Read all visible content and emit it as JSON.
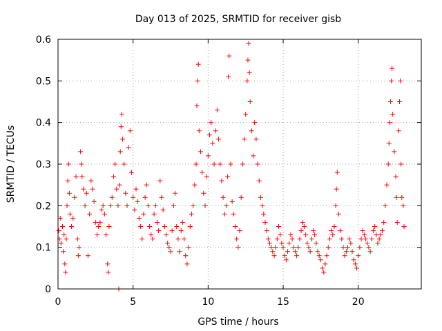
{
  "chart_data": {
    "type": "scatter",
    "title": "Day 013 of 2025, SRMTID for receiver gisb",
    "xlabel": "GPS time / hours",
    "ylabel": "SRMTID / TECUs",
    "xlim": [
      0,
      24.2
    ],
    "ylim": [
      0,
      0.6
    ],
    "x_ticks": [
      0,
      5,
      10,
      15,
      20
    ],
    "y_ticks": [
      0,
      0.1,
      0.2,
      0.3,
      0.4,
      0.5,
      0.6
    ],
    "grid": true,
    "marker": "+",
    "marker_color": "#ff0000",
    "series": [
      {
        "name": "SRMTID",
        "points": [
          [
            0.05,
            0.14
          ],
          [
            0.1,
            0.12
          ],
          [
            0.15,
            0.17
          ],
          [
            0.2,
            0.11
          ],
          [
            0.3,
            0.15
          ],
          [
            0.35,
            0.09
          ],
          [
            0.4,
            0.13
          ],
          [
            0.45,
            0.06
          ],
          [
            0.5,
            0.04
          ],
          [
            0.55,
            0.12
          ],
          [
            0.6,
            0.2
          ],
          [
            0.65,
            0.26
          ],
          [
            0.7,
            0.3
          ],
          [
            0.75,
            0.23
          ],
          [
            0.8,
            0.18
          ],
          [
            0.9,
            0.15
          ],
          [
            1.0,
            0.17
          ],
          [
            1.1,
            0.22
          ],
          [
            1.2,
            0.27
          ],
          [
            1.3,
            0.12
          ],
          [
            1.35,
            0.08
          ],
          [
            1.4,
            0.1
          ],
          [
            1.5,
            0.33
          ],
          [
            1.55,
            0.3
          ],
          [
            1.6,
            0.27
          ],
          [
            1.7,
            0.24
          ],
          [
            1.8,
            0.2
          ],
          [
            1.9,
            0.23
          ],
          [
            2.0,
            0.08
          ],
          [
            2.1,
            0.18
          ],
          [
            2.2,
            0.26
          ],
          [
            2.3,
            0.24
          ],
          [
            2.4,
            0.21
          ],
          [
            2.5,
            0.16
          ],
          [
            2.6,
            0.13
          ],
          [
            2.7,
            0.15
          ],
          [
            2.8,
            0.16
          ],
          [
            2.9,
            0.19
          ],
          [
            3.0,
            0.2
          ],
          [
            3.1,
            0.18
          ],
          [
            3.2,
            0.13
          ],
          [
            3.3,
            0.06
          ],
          [
            3.35,
            0.04
          ],
          [
            3.4,
            0.15
          ],
          [
            3.5,
            0.2
          ],
          [
            3.6,
            0.22
          ],
          [
            3.7,
            0.27
          ],
          [
            3.8,
            0.3
          ],
          [
            3.9,
            0.24
          ],
          [
            4.0,
            0.2
          ],
          [
            4.05,
            0.0
          ],
          [
            4.1,
            0.25
          ],
          [
            4.15,
            0.33
          ],
          [
            4.2,
            0.39
          ],
          [
            4.25,
            0.42
          ],
          [
            4.3,
            0.36
          ],
          [
            4.4,
            0.3
          ],
          [
            4.5,
            0.23
          ],
          [
            4.6,
            0.2
          ],
          [
            4.7,
            0.34
          ],
          [
            4.8,
            0.38
          ],
          [
            4.9,
            0.28
          ],
          [
            5.0,
            0.22
          ],
          [
            5.1,
            0.19
          ],
          [
            5.2,
            0.24
          ],
          [
            5.3,
            0.21
          ],
          [
            5.4,
            0.17
          ],
          [
            5.5,
            0.15
          ],
          [
            5.6,
            0.12
          ],
          [
            5.7,
            0.18
          ],
          [
            5.8,
            0.22
          ],
          [
            5.9,
            0.25
          ],
          [
            6.0,
            0.2
          ],
          [
            6.1,
            0.15
          ],
          [
            6.2,
            0.13
          ],
          [
            6.3,
            0.12
          ],
          [
            6.4,
            0.18
          ],
          [
            6.5,
            0.2
          ],
          [
            6.6,
            0.16
          ],
          [
            6.7,
            0.14
          ],
          [
            6.8,
            0.26
          ],
          [
            6.9,
            0.22
          ],
          [
            7.0,
            0.19
          ],
          [
            7.1,
            0.15
          ],
          [
            7.2,
            0.13
          ],
          [
            7.3,
            0.11
          ],
          [
            7.4,
            0.1
          ],
          [
            7.5,
            0.09
          ],
          [
            7.6,
            0.14
          ],
          [
            7.7,
            0.2
          ],
          [
            7.8,
            0.23
          ],
          [
            7.9,
            0.15
          ],
          [
            8.0,
            0.12
          ],
          [
            8.1,
            0.09
          ],
          [
            8.2,
            0.14
          ],
          [
            8.3,
            0.16
          ],
          [
            8.4,
            0.12
          ],
          [
            8.5,
            0.08
          ],
          [
            8.6,
            0.06
          ],
          [
            8.7,
            0.1
          ],
          [
            8.8,
            0.15
          ],
          [
            8.9,
            0.18
          ],
          [
            9.0,
            0.2
          ],
          [
            9.1,
            0.25
          ],
          [
            9.2,
            0.3
          ],
          [
            9.25,
            0.44
          ],
          [
            9.3,
            0.5
          ],
          [
            9.35,
            0.54
          ],
          [
            9.4,
            0.38
          ],
          [
            9.5,
            0.33
          ],
          [
            9.6,
            0.28
          ],
          [
            9.7,
            0.23
          ],
          [
            9.8,
            0.2
          ],
          [
            9.9,
            0.27
          ],
          [
            10.0,
            0.32
          ],
          [
            10.1,
            0.37
          ],
          [
            10.2,
            0.4
          ],
          [
            10.3,
            0.35
          ],
          [
            10.4,
            0.3
          ],
          [
            10.5,
            0.38
          ],
          [
            10.6,
            0.43
          ],
          [
            10.7,
            0.36
          ],
          [
            10.8,
            0.3
          ],
          [
            10.9,
            0.26
          ],
          [
            11.0,
            0.22
          ],
          [
            11.1,
            0.18
          ],
          [
            11.2,
            0.2
          ],
          [
            11.3,
            0.27
          ],
          [
            11.35,
            0.51
          ],
          [
            11.4,
            0.56
          ],
          [
            11.5,
            0.3
          ],
          [
            11.6,
            0.21
          ],
          [
            11.7,
            0.18
          ],
          [
            11.8,
            0.15
          ],
          [
            11.9,
            0.12
          ],
          [
            12.0,
            0.1
          ],
          [
            12.1,
            0.14
          ],
          [
            12.2,
            0.22
          ],
          [
            12.3,
            0.3
          ],
          [
            12.4,
            0.36
          ],
          [
            12.5,
            0.42
          ],
          [
            12.6,
            0.5
          ],
          [
            12.65,
            0.55
          ],
          [
            12.7,
            0.59
          ],
          [
            12.75,
            0.52
          ],
          [
            12.8,
            0.45
          ],
          [
            12.9,
            0.38
          ],
          [
            13.0,
            0.32
          ],
          [
            13.1,
            0.4
          ],
          [
            13.2,
            0.36
          ],
          [
            13.3,
            0.3
          ],
          [
            13.4,
            0.26
          ],
          [
            13.5,
            0.22
          ],
          [
            13.6,
            0.2
          ],
          [
            13.7,
            0.18
          ],
          [
            13.8,
            0.16
          ],
          [
            13.9,
            0.14
          ],
          [
            14.0,
            0.12
          ],
          [
            14.1,
            0.11
          ],
          [
            14.2,
            0.1
          ],
          [
            14.3,
            0.09
          ],
          [
            14.4,
            0.08
          ],
          [
            14.5,
            0.1
          ],
          [
            14.6,
            0.12
          ],
          [
            14.7,
            0.15
          ],
          [
            14.8,
            0.13
          ],
          [
            14.9,
            0.11
          ],
          [
            15.0,
            0.1
          ],
          [
            15.1,
            0.08
          ],
          [
            15.2,
            0.07
          ],
          [
            15.3,
            0.09
          ],
          [
            15.4,
            0.11
          ],
          [
            15.5,
            0.13
          ],
          [
            15.6,
            0.12
          ],
          [
            15.7,
            0.1
          ],
          [
            15.8,
            0.09
          ],
          [
            15.9,
            0.08
          ],
          [
            16.0,
            0.1
          ],
          [
            16.1,
            0.12
          ],
          [
            16.2,
            0.14
          ],
          [
            16.3,
            0.16
          ],
          [
            16.4,
            0.15
          ],
          [
            16.5,
            0.13
          ],
          [
            16.6,
            0.11
          ],
          [
            16.7,
            0.1
          ],
          [
            16.8,
            0.09
          ],
          [
            16.9,
            0.12
          ],
          [
            17.0,
            0.14
          ],
          [
            17.1,
            0.13
          ],
          [
            17.2,
            0.11
          ],
          [
            17.3,
            0.09
          ],
          [
            17.4,
            0.08
          ],
          [
            17.5,
            0.07
          ],
          [
            17.6,
            0.05
          ],
          [
            17.7,
            0.04
          ],
          [
            17.8,
            0.06
          ],
          [
            17.9,
            0.08
          ],
          [
            18.0,
            0.1
          ],
          [
            18.1,
            0.12
          ],
          [
            18.2,
            0.14
          ],
          [
            18.3,
            0.13
          ],
          [
            18.4,
            0.15
          ],
          [
            18.5,
            0.2
          ],
          [
            18.55,
            0.24
          ],
          [
            18.6,
            0.28
          ],
          [
            18.7,
            0.18
          ],
          [
            18.8,
            0.14
          ],
          [
            18.9,
            0.12
          ],
          [
            19.0,
            0.1
          ],
          [
            19.1,
            0.08
          ],
          [
            19.2,
            0.09
          ],
          [
            19.3,
            0.1
          ],
          [
            19.4,
            0.12
          ],
          [
            19.5,
            0.11
          ],
          [
            19.6,
            0.09
          ],
          [
            19.7,
            0.07
          ],
          [
            19.8,
            0.06
          ],
          [
            19.9,
            0.05
          ],
          [
            20.0,
            0.08
          ],
          [
            20.1,
            0.1
          ],
          [
            20.2,
            0.12
          ],
          [
            20.3,
            0.14
          ],
          [
            20.4,
            0.13
          ],
          [
            20.5,
            0.12
          ],
          [
            20.6,
            0.11
          ],
          [
            20.7,
            0.1
          ],
          [
            20.8,
            0.09
          ],
          [
            20.9,
            0.12
          ],
          [
            21.0,
            0.14
          ],
          [
            21.1,
            0.15
          ],
          [
            21.2,
            0.13
          ],
          [
            21.3,
            0.11
          ],
          [
            21.4,
            0.12
          ],
          [
            21.5,
            0.13
          ],
          [
            21.6,
            0.14
          ],
          [
            21.7,
            0.16
          ],
          [
            21.8,
            0.2
          ],
          [
            21.9,
            0.25
          ],
          [
            22.0,
            0.3
          ],
          [
            22.05,
            0.35
          ],
          [
            22.1,
            0.4
          ],
          [
            22.15,
            0.45
          ],
          [
            22.2,
            0.5
          ],
          [
            22.25,
            0.53
          ],
          [
            22.3,
            0.42
          ],
          [
            22.4,
            0.33
          ],
          [
            22.5,
            0.27
          ],
          [
            22.55,
            0.22
          ],
          [
            22.6,
            0.16
          ],
          [
            22.7,
            0.38
          ],
          [
            22.75,
            0.45
          ],
          [
            22.8,
            0.5
          ],
          [
            22.85,
            0.3
          ],
          [
            22.9,
            0.22
          ],
          [
            23.0,
            0.2
          ],
          [
            23.05,
            0.15
          ]
        ]
      }
    ]
  }
}
